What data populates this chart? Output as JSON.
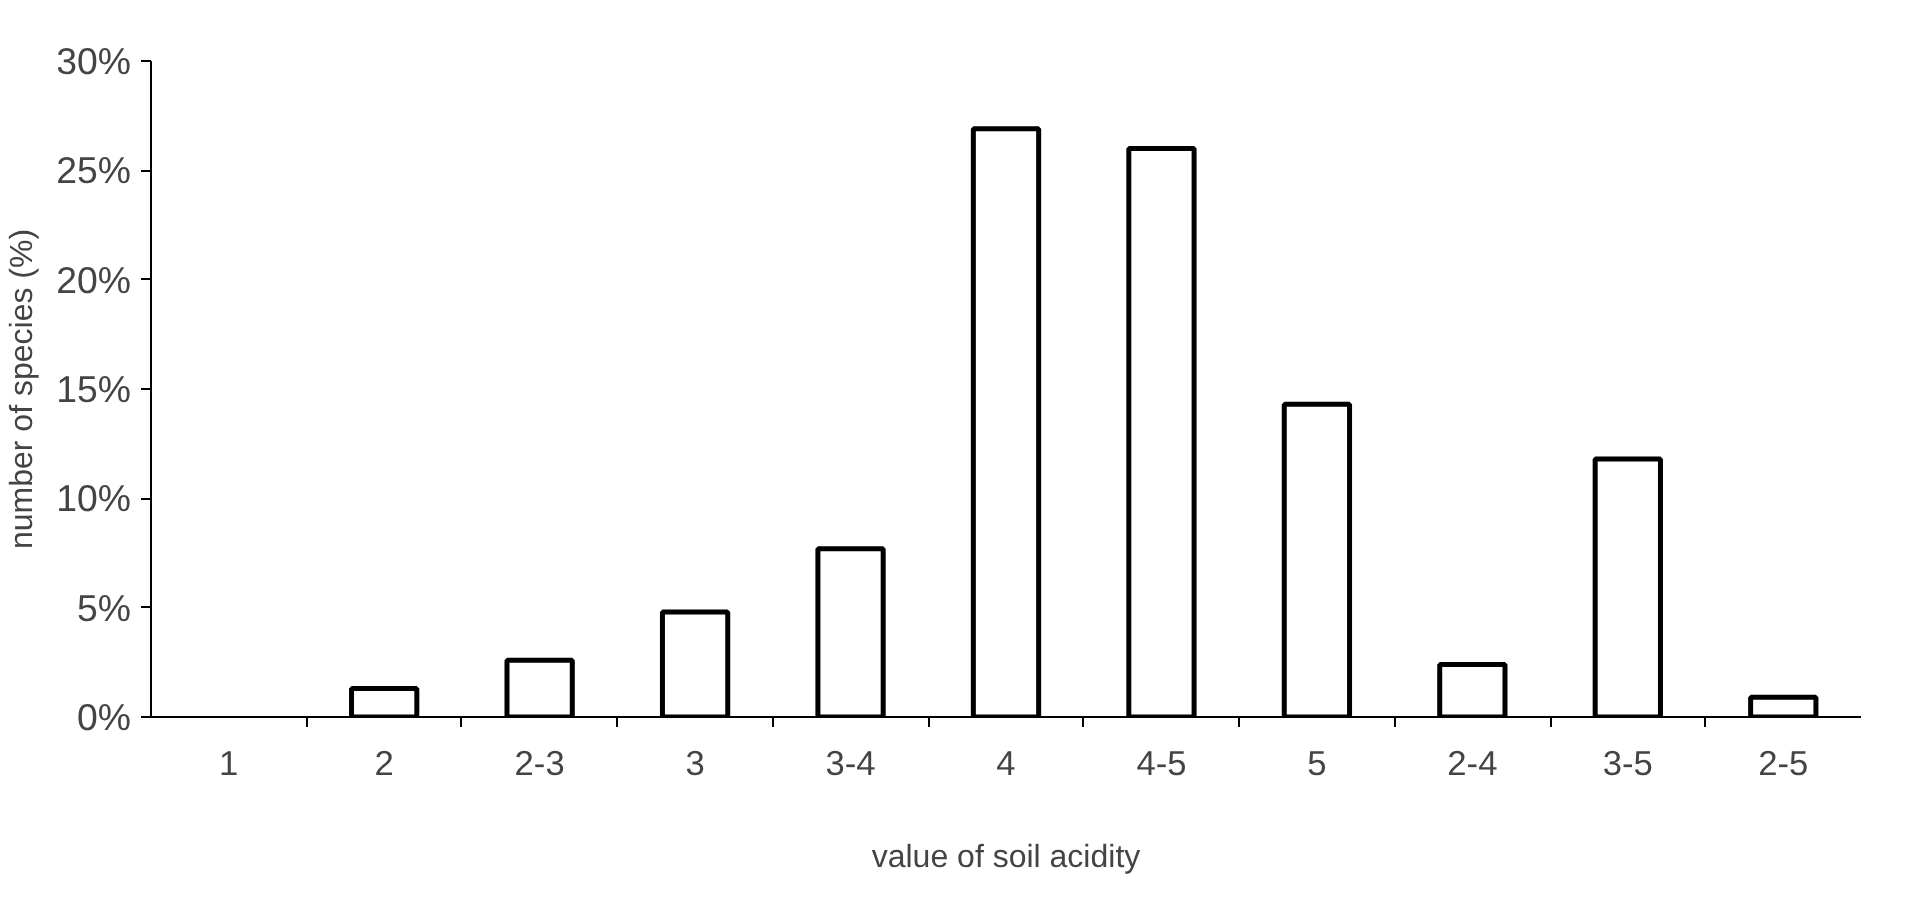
{
  "chart_data": {
    "type": "bar",
    "xlabel": "value of soil acidity",
    "ylabel": "number of species (%)",
    "categories": [
      "1",
      "2",
      "2-3",
      "3",
      "3-4",
      "4",
      "4-5",
      "5",
      "2-4",
      "3-5",
      "2-5"
    ],
    "values": [
      0,
      1.3,
      2.6,
      4.8,
      7.7,
      26.9,
      26.0,
      14.3,
      2.4,
      11.8,
      0.9
    ],
    "color": "#ffffff",
    "ylim": [
      0,
      30
    ],
    "yticks": [
      {
        "value": 0,
        "label": "0%"
      },
      {
        "value": 5,
        "label": "5%"
      },
      {
        "value": 10,
        "label": "10%"
      },
      {
        "value": 15,
        "label": "15%"
      },
      {
        "value": 20,
        "label": "20%"
      },
      {
        "value": 25,
        "label": "25%"
      },
      {
        "value": 30,
        "label": "30%"
      }
    ],
    "grid": false
  }
}
